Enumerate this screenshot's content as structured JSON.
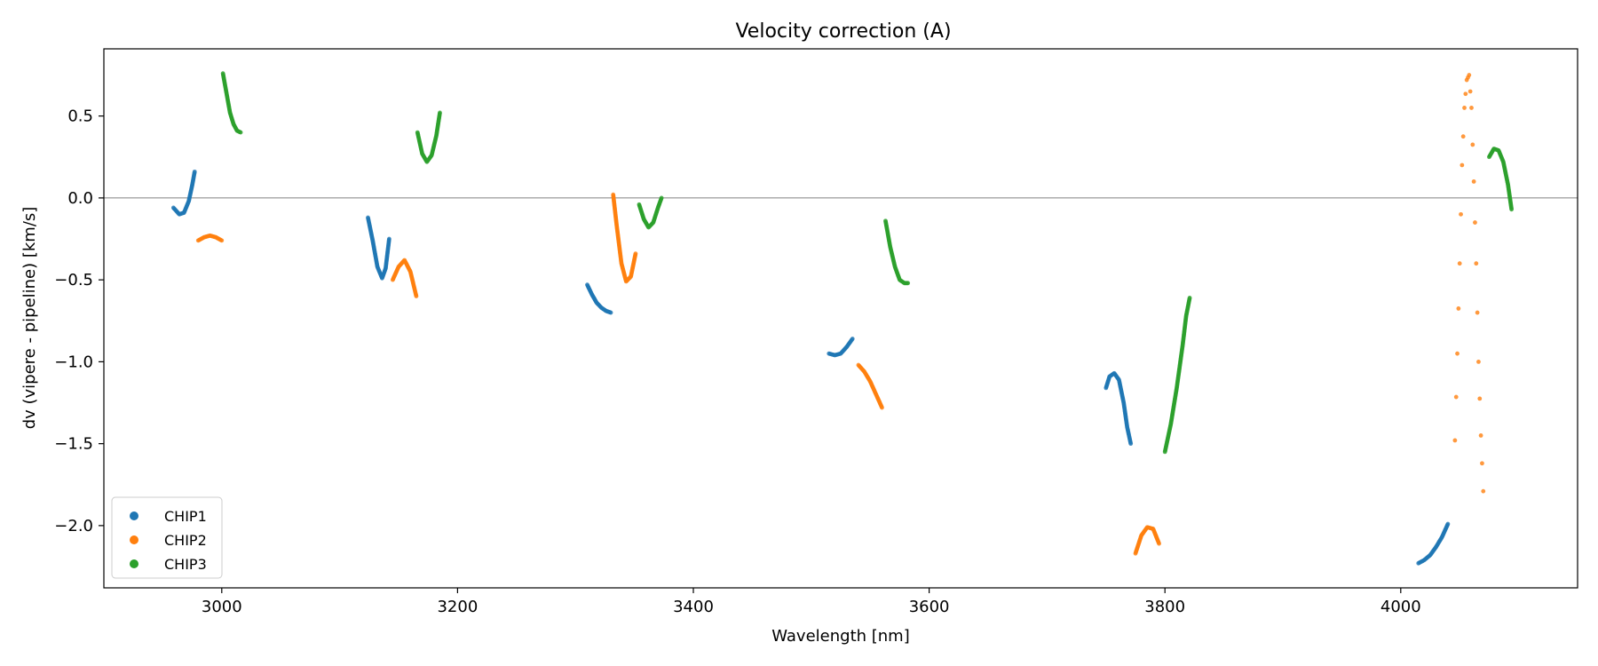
{
  "chart_data": {
    "type": "scatter",
    "title": "Velocity correction (A)",
    "xlabel": "Wavelength [nm]",
    "ylabel": "dv (vipere - pipeline) [km/s]",
    "xlim": [
      2900,
      4150
    ],
    "ylim": [
      -2.38,
      0.91
    ],
    "xticks": [
      3000,
      3200,
      3400,
      3600,
      3800,
      4000
    ],
    "xtick_labels": [
      "3000",
      "3200",
      "3400",
      "3600",
      "3800",
      "4000"
    ],
    "yticks": [
      0.5,
      0.0,
      -0.5,
      -1.0,
      -1.5,
      -2.0
    ],
    "ytick_labels": [
      "0.5",
      "0.0",
      "−0.5",
      "−1.0",
      "−1.5",
      "−2.0"
    ],
    "reference_line_y": 0.0,
    "legend_position": "lower-left",
    "series": [
      {
        "name": "CHIP1",
        "color": "#1f77b4",
        "segments": [
          [
            [
              2959,
              -0.06
            ],
            [
              2964,
              -0.1
            ],
            [
              2968,
              -0.09
            ],
            [
              2972,
              -0.02
            ],
            [
              2975,
              0.08
            ],
            [
              2977,
              0.16
            ]
          ],
          [
            [
              3124,
              -0.12
            ],
            [
              3128,
              -0.26
            ],
            [
              3132,
              -0.42
            ],
            [
              3136,
              -0.49
            ],
            [
              3139,
              -0.43
            ],
            [
              3142,
              -0.25
            ]
          ],
          [
            [
              3310,
              -0.53
            ],
            [
              3314,
              -0.59
            ],
            [
              3318,
              -0.64
            ],
            [
              3322,
              -0.67
            ],
            [
              3326,
              -0.69
            ],
            [
              3330,
              -0.7
            ]
          ],
          [
            [
              3515,
              -0.95
            ],
            [
              3520,
              -0.96
            ],
            [
              3525,
              -0.95
            ],
            [
              3530,
              -0.91
            ],
            [
              3535,
              -0.86
            ]
          ],
          [
            [
              3750,
              -1.16
            ],
            [
              3753,
              -1.09
            ],
            [
              3757,
              -1.07
            ],
            [
              3761,
              -1.11
            ],
            [
              3765,
              -1.25
            ],
            [
              3768,
              -1.4
            ],
            [
              3771,
              -1.5
            ]
          ],
          [
            [
              4015,
              -2.23
            ],
            [
              4020,
              -2.21
            ],
            [
              4025,
              -2.18
            ],
            [
              4030,
              -2.13
            ],
            [
              4035,
              -2.07
            ],
            [
              4040,
              -1.99
            ]
          ]
        ]
      },
      {
        "name": "CHIP2",
        "color": "#ff7f0e",
        "segments": [
          [
            [
              2980,
              -0.26
            ],
            [
              2985,
              -0.24
            ],
            [
              2990,
              -0.23
            ],
            [
              2995,
              -0.24
            ],
            [
              3000,
              -0.26
            ]
          ],
          [
            [
              3145,
              -0.5
            ],
            [
              3150,
              -0.42
            ],
            [
              3155,
              -0.38
            ],
            [
              3160,
              -0.45
            ],
            [
              3165,
              -0.6
            ]
          ],
          [
            [
              3332,
              0.02
            ],
            [
              3335,
              -0.17
            ],
            [
              3339,
              -0.4
            ],
            [
              3343,
              -0.51
            ],
            [
              3347,
              -0.48
            ],
            [
              3351,
              -0.34
            ]
          ],
          [
            [
              3540,
              -1.02
            ],
            [
              3545,
              -1.06
            ],
            [
              3550,
              -1.12
            ],
            [
              3555,
              -1.2
            ],
            [
              3560,
              -1.28
            ]
          ],
          [
            [
              3775,
              -2.17
            ],
            [
              3780,
              -2.06
            ],
            [
              3785,
              -2.01
            ],
            [
              3790,
              -2.02
            ],
            [
              3795,
              -2.11
            ]
          ],
          [
            [
              4046,
              -1.48
            ],
            [
              4048,
              -0.95
            ],
            [
              4050,
              -0.4
            ],
            [
              4052,
              0.2
            ],
            [
              4054,
              0.55
            ],
            [
              4056,
              0.72
            ],
            [
              4058,
              0.75
            ],
            [
              4060,
              0.55
            ],
            [
              4062,
              0.1
            ],
            [
              4064,
              -0.4
            ],
            [
              4066,
              -1.0
            ],
            [
              4068,
              -1.45
            ],
            [
              4070,
              -1.79
            ]
          ]
        ]
      },
      {
        "name": "CHIP3",
        "color": "#2ca02c",
        "segments": [
          [
            [
              3001,
              0.76
            ],
            [
              3004,
              0.64
            ],
            [
              3007,
              0.52
            ],
            [
              3010,
              0.45
            ],
            [
              3013,
              0.41
            ],
            [
              3016,
              0.4
            ]
          ],
          [
            [
              3166,
              0.4
            ],
            [
              3170,
              0.27
            ],
            [
              3174,
              0.22
            ],
            [
              3178,
              0.26
            ],
            [
              3182,
              0.38
            ],
            [
              3185,
              0.52
            ]
          ],
          [
            [
              3354,
              -0.04
            ],
            [
              3358,
              -0.13
            ],
            [
              3362,
              -0.18
            ],
            [
              3366,
              -0.15
            ],
            [
              3370,
              -0.06
            ],
            [
              3373,
              0.0
            ]
          ],
          [
            [
              3563,
              -0.14
            ],
            [
              3567,
              -0.3
            ],
            [
              3571,
              -0.42
            ],
            [
              3575,
              -0.5
            ],
            [
              3579,
              -0.52
            ],
            [
              3582,
              -0.52
            ]
          ],
          [
            [
              3800,
              -1.55
            ],
            [
              3805,
              -1.38
            ],
            [
              3810,
              -1.16
            ],
            [
              3815,
              -0.9
            ],
            [
              3818,
              -0.72
            ],
            [
              3821,
              -0.61
            ]
          ],
          [
            [
              4075,
              0.25
            ],
            [
              4079,
              0.3
            ],
            [
              4083,
              0.29
            ],
            [
              4087,
              0.22
            ],
            [
              4091,
              0.08
            ],
            [
              4094,
              -0.07
            ]
          ]
        ]
      }
    ]
  }
}
